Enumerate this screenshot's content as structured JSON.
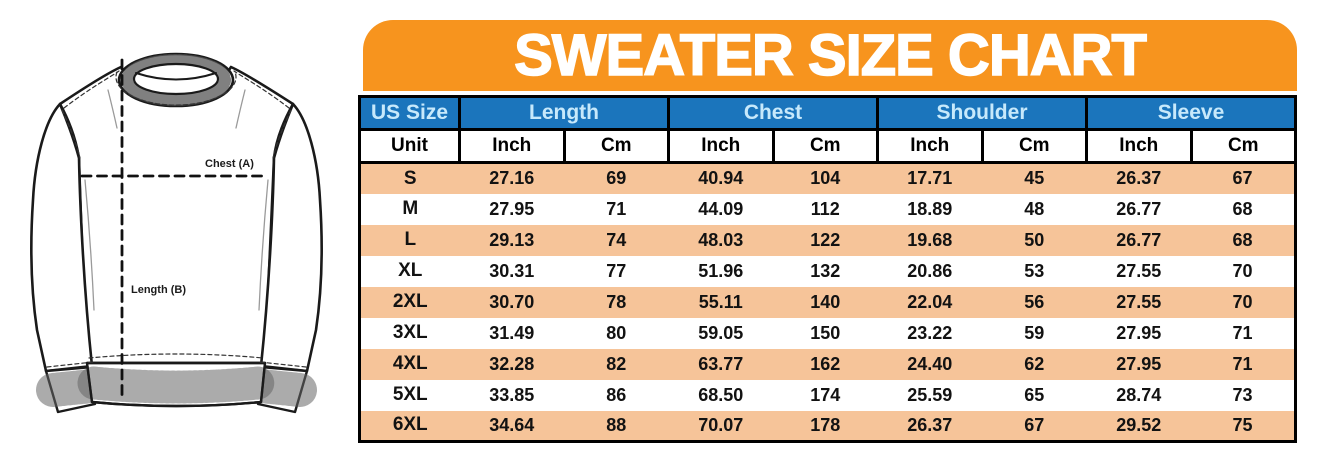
{
  "title": "SWEATER SIZE CHART",
  "diagram": {
    "chest_label": "Chest (A)",
    "length_label": "Length (B)"
  },
  "colors": {
    "orange": "#F7941E",
    "blue": "#1B75BC",
    "pale_blue_text": "#C7E9FB",
    "row_peach": "#F6C499"
  },
  "chart_data": {
    "type": "table",
    "title": "SWEATER SIZE CHART",
    "group_headers": [
      {
        "label": "US Size",
        "span": 1
      },
      {
        "label": "Length",
        "span": 2
      },
      {
        "label": "Chest",
        "span": 2
      },
      {
        "label": "Shoulder",
        "span": 2
      },
      {
        "label": "Sleeve",
        "span": 2
      }
    ],
    "unit_row": [
      "Unit",
      "Inch",
      "Cm",
      "Inch",
      "Cm",
      "Inch",
      "Cm",
      "Inch",
      "Cm"
    ],
    "rows": [
      {
        "size": "S",
        "values": [
          "27.16",
          "69",
          "40.94",
          "104",
          "17.71",
          "45",
          "26.37",
          "67"
        ]
      },
      {
        "size": "M",
        "values": [
          "27.95",
          "71",
          "44.09",
          "112",
          "18.89",
          "48",
          "26.77",
          "68"
        ]
      },
      {
        "size": "L",
        "values": [
          "29.13",
          "74",
          "48.03",
          "122",
          "19.68",
          "50",
          "26.77",
          "68"
        ]
      },
      {
        "size": "XL",
        "values": [
          "30.31",
          "77",
          "51.96",
          "132",
          "20.86",
          "53",
          "27.55",
          "70"
        ]
      },
      {
        "size": "2XL",
        "values": [
          "30.70",
          "78",
          "55.11",
          "140",
          "22.04",
          "56",
          "27.55",
          "70"
        ]
      },
      {
        "size": "3XL",
        "values": [
          "31.49",
          "80",
          "59.05",
          "150",
          "23.22",
          "59",
          "27.95",
          "71"
        ]
      },
      {
        "size": "4XL",
        "values": [
          "32.28",
          "82",
          "63.77",
          "162",
          "24.40",
          "62",
          "27.95",
          "71"
        ]
      },
      {
        "size": "5XL",
        "values": [
          "33.85",
          "86",
          "68.50",
          "174",
          "25.59",
          "65",
          "28.74",
          "73"
        ]
      },
      {
        "size": "6XL",
        "values": [
          "34.64",
          "88",
          "70.07",
          "178",
          "26.37",
          "67",
          "29.52",
          "75"
        ]
      }
    ]
  }
}
